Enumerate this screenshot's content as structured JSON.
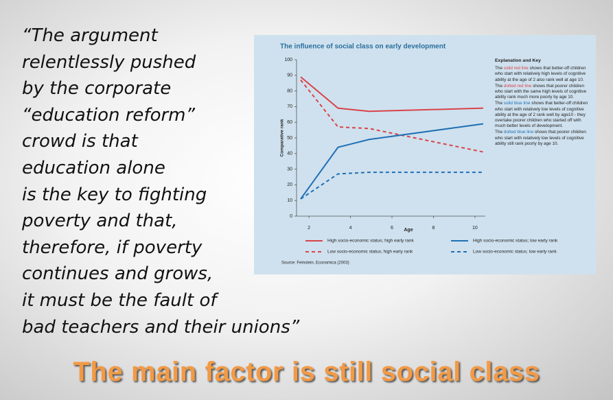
{
  "quote": {
    "lines": [
      "“The argument",
      "relentlessly pushed",
      "by the corporate",
      "“education reform”",
      "crowd is that",
      "education alone",
      "is the key to fighting",
      "poverty and that,",
      "therefore, if poverty",
      "continues and grows,",
      "it must be the fault of",
      "bad teachers and their unions”"
    ]
  },
  "headline": "The main factor is still social class",
  "chart_data": {
    "type": "line",
    "title": "The influence of social class on early development",
    "x_label": "Age",
    "y_label": "Comparative rank",
    "x": [
      1.6,
      3.4,
      4.9,
      10.4
    ],
    "series": [
      {
        "name": "High socio-economic status; high early rank",
        "color": "#d9434a",
        "style": "solid",
        "values": [
          89,
          69,
          67,
          69
        ]
      },
      {
        "name": "Low socio-economic status; high early rank",
        "color": "#d9434a",
        "style": "dotted",
        "values": [
          87,
          57,
          56,
          41
        ]
      },
      {
        "name": "High socio-economic status; low early rank",
        "color": "#1f6fb5",
        "style": "solid",
        "values": [
          11,
          44,
          49,
          59
        ]
      },
      {
        "name": "Low socio-economic status; low early rank",
        "color": "#1f6fb5",
        "style": "dotted",
        "values": [
          11,
          27,
          28,
          28
        ]
      }
    ],
    "xlim": [
      1.4,
      10.5
    ],
    "xticks": [
      2,
      4,
      6,
      8,
      10
    ],
    "ylim": [
      0,
      100
    ],
    "yticks": [
      0,
      10,
      20,
      30,
      40,
      50,
      60,
      70,
      80,
      90,
      100
    ],
    "source": "Source: Feinstein, Economica (2003)",
    "key": {
      "title": "Explanation and Key",
      "items": [
        {
          "before": "The ",
          "highlight": "solid red line",
          "after": " shows that better-off children who start with relatively high levels of cognitive ability at the age of 2 also rank well at age 10."
        },
        {
          "before": "The ",
          "highlight": "dotted red line",
          "after": " shows that poorer children who start with the same high levels of cognitive ability rank much more poorly by age 10."
        },
        {
          "before": "The ",
          "highlight": "solid blue line",
          "after": " shows that better-off children who start with relatively low levels of cognitive ability at the age of 2 rank well by age10 - they overtake poorer children who started off with much better levels of development."
        },
        {
          "before": "The ",
          "highlight": "dotted blue line",
          "after": " shows that poorer children who start with relatively low levels of cognitive ability still rank poorly by age 10."
        }
      ]
    }
  }
}
